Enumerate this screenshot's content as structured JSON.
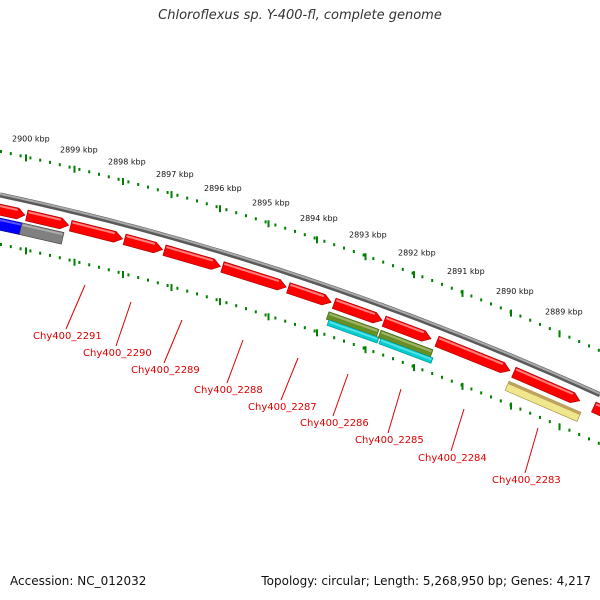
{
  "title": "Chloroflexus sp. Y-400-fl, complete genome",
  "footer": {
    "accession": "Accession: NC_012032",
    "topology": "Topology: circular; Length: 5,268,950 bp; Genes: 4,217"
  },
  "colors": {
    "cds_forward": "#ff0000",
    "backbone": "#808080",
    "blue_feature": "#0000ff",
    "gray_feature": "#808080",
    "olive_feature": "#6b8e23",
    "cyan_feature": "#00ced1",
    "khaki_feature": "#f0e68c",
    "tick_green": "#008000",
    "label_red": "#e00000"
  },
  "scale_labels": [
    "2900 kbp",
    "2899 kbp",
    "2898 kbp",
    "2897 kbp",
    "2896 kbp",
    "2895 kbp",
    "2894 kbp",
    "2893 kbp",
    "2892 kbp",
    "2891 kbp",
    "2890 kbp",
    "2889 kbp"
  ],
  "gene_labels": [
    "Chy400_2291",
    "Chy400_2290",
    "Chy400_2289",
    "Chy400_2288",
    "Chy400_2287",
    "Chy400_2286",
    "Chy400_2285",
    "Chy400_2284",
    "Chy400_2283"
  ]
}
